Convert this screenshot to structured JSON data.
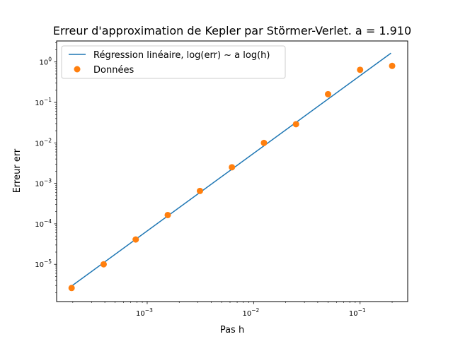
{
  "chart_data": {
    "type": "scatter",
    "title": "Erreur d'approximation de Kepler par Störmer-Verlet.  a = 1.910",
    "xlabel": "Pas h",
    "ylabel": "Erreur err",
    "xscale": "log",
    "yscale": "log",
    "xlim": [
      0.000141,
      0.28
    ],
    "ylim": [
      1.2e-06,
      3.3
    ],
    "grid": false,
    "legend_position": "top-left",
    "x_ticks": [
      {
        "value": 0.001,
        "base": "10",
        "exp": "−3"
      },
      {
        "value": 0.01,
        "base": "10",
        "exp": "−2"
      },
      {
        "value": 0.1,
        "base": "10",
        "exp": "−1"
      }
    ],
    "y_ticks": [
      {
        "value": 1e-05,
        "base": "10",
        "exp": "−5"
      },
      {
        "value": 0.0001,
        "base": "10",
        "exp": "−4"
      },
      {
        "value": 0.001,
        "base": "10",
        "exp": "−3"
      },
      {
        "value": 0.01,
        "base": "10",
        "exp": "−2"
      },
      {
        "value": 0.1,
        "base": "10",
        "exp": "−1"
      },
      {
        "value": 1,
        "base": "10",
        "exp": "0"
      }
    ],
    "series": [
      {
        "name": "Régression linéaire, log(err) ~ a log(h)",
        "kind": "line",
        "color": "#1f77b4",
        "x": [
          0.000195,
          0.195
        ],
        "y": [
          2.9e-06,
          1.65
        ]
      },
      {
        "name": "Données",
        "kind": "scatter",
        "color": "#ff7f0e",
        "x": [
          0.000195,
          0.00039,
          0.00078,
          0.00156,
          0.00313,
          0.00625,
          0.0125,
          0.025,
          0.05,
          0.1,
          0.2
        ],
        "y": [
          2.6e-06,
          1e-05,
          4.1e-05,
          0.000165,
          0.00065,
          0.0025,
          0.01,
          0.029,
          0.16,
          0.64,
          0.8
        ]
      }
    ]
  }
}
